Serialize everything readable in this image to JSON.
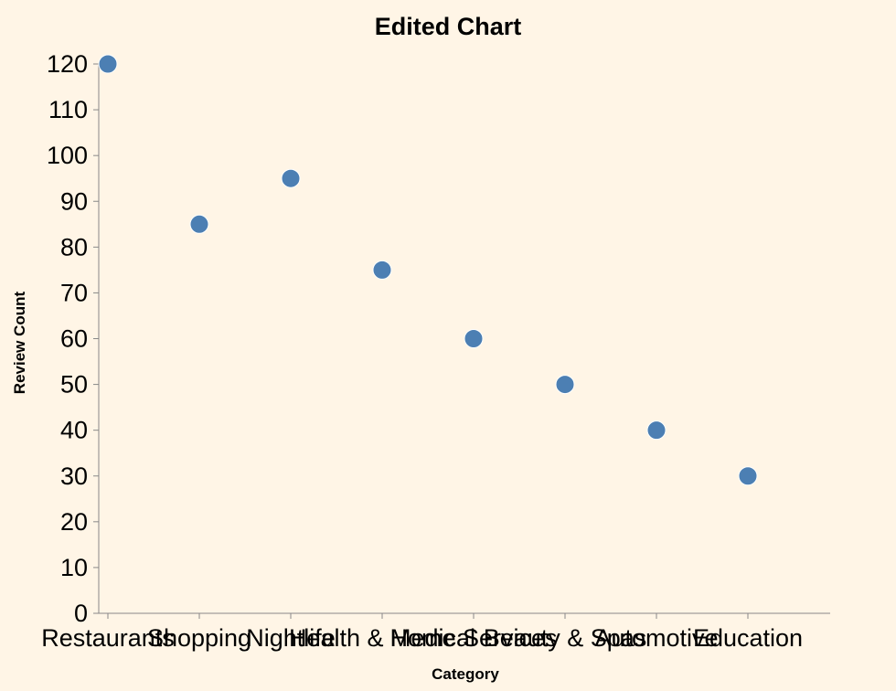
{
  "chart_data": {
    "type": "scatter",
    "title": "Edited Chart",
    "xlabel": "Category",
    "ylabel": "Review Count",
    "categories": [
      "Restaurants",
      "Shopping",
      "Nightlife",
      "Health & Medical",
      "Home Services",
      "Beauty & Spas",
      "Automotive",
      "Education"
    ],
    "values": [
      120,
      85,
      95,
      75,
      60,
      50,
      40,
      30
    ],
    "ylim": [
      0,
      120
    ],
    "yticks": [
      0,
      10,
      20,
      30,
      40,
      50,
      60,
      70,
      80,
      90,
      100,
      110,
      120
    ],
    "grid": false,
    "point_color": "#4c7fb3",
    "background": "#fff5e6"
  }
}
